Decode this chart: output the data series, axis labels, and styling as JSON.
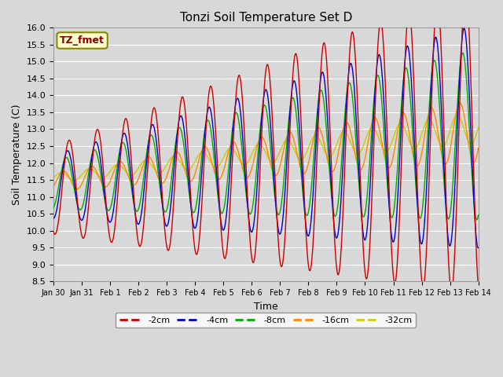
{
  "title": "Tonzi Soil Temperature Set D",
  "xlabel": "Time",
  "ylabel": "Soil Temperature (C)",
  "ylim": [
    8.5,
    16.0
  ],
  "yticks": [
    8.5,
    9.0,
    9.5,
    10.0,
    10.5,
    11.0,
    11.5,
    12.0,
    12.5,
    13.0,
    13.5,
    14.0,
    14.5,
    15.0,
    15.5,
    16.0
  ],
  "xtick_labels": [
    "Jan 30",
    "Jan 31",
    "Feb 1",
    "Feb 2",
    "Feb 3",
    "Feb 4",
    "Feb 5",
    "Feb 6",
    "Feb 7",
    "Feb 8",
    "Feb 9",
    "Feb 10",
    "Feb 11",
    "Feb 12",
    "Feb 13",
    "Feb 14"
  ],
  "series_colors": [
    "#cc0000",
    "#0000cc",
    "#00aa00",
    "#ff8800",
    "#cccc00"
  ],
  "series_labels": [
    "-2cm",
    "-4cm",
    "-8cm",
    "-16cm",
    "-32cm"
  ],
  "legend_label": "TZ_fmet",
  "legend_bg": "#ffffcc",
  "legend_border": "#888800",
  "bg_color": "#d8d8d8",
  "plot_bg": "#d8d8d8",
  "grid_color": "#ffffff",
  "title_fontsize": 11,
  "axis_fontsize": 9,
  "tick_fontsize": 8
}
